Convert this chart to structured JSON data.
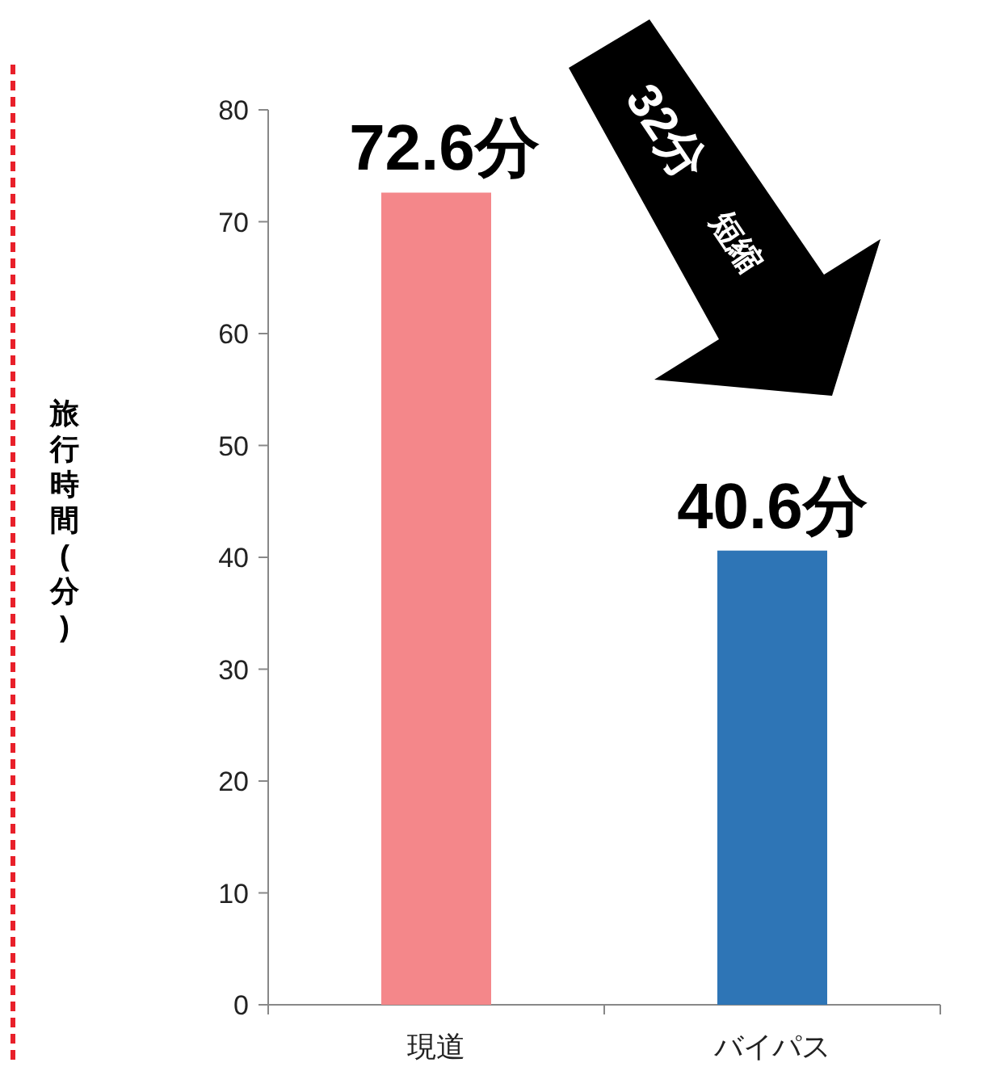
{
  "chart_data": {
    "type": "bar",
    "ylabel": "旅行時間(分)",
    "categories": [
      "現道",
      "バイパス"
    ],
    "values": [
      72.6,
      40.6
    ],
    "colors": [
      "#f4878a",
      "#2e75b6"
    ],
    "value_labels": [
      "72.6分",
      "40.6分"
    ],
    "ylim": [
      0,
      80
    ],
    "yticks": [
      0,
      10,
      20,
      30,
      40,
      50,
      60,
      70,
      80
    ],
    "grid": false,
    "annotations": [
      "32分",
      "短縮"
    ]
  }
}
